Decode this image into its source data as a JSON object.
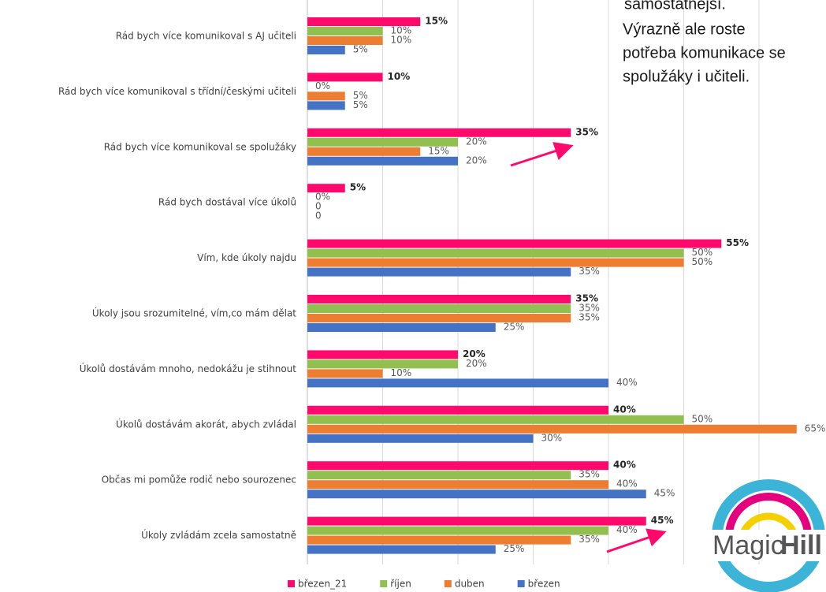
{
  "chart_data": {
    "type": "barh",
    "categories": [
      "Rád bych více komunikoval s AJ učiteli",
      "Rád bych více komunikoval s třídní/českými učiteli",
      "Rád bych více komunikoval se spolužáky",
      "Rád bych dostával více úkolů",
      "Vím, kde úkoly najdu",
      "Úkoly jsou srozumitelné, vím,co mám dělat",
      "Úkolů dostávám mnoho, nedokážu je stihnout",
      "Úkolů dostávám akorát, abych zvládal",
      "Občas mi pomůže rodič nebo sourozenec",
      "Úkoly zvládám zcela samostatně"
    ],
    "series": [
      {
        "name": "březen_21",
        "color": "#ff0a6c",
        "values": [
          15,
          10,
          35,
          5,
          55,
          35,
          20,
          40,
          40,
          45
        ],
        "value_labels": [
          "15%",
          "10%",
          "35%",
          "5%",
          "55%",
          "35%",
          "20%",
          "40%",
          "40%",
          "45%"
        ]
      },
      {
        "name": "říjen",
        "color": "#92c050",
        "values": [
          10,
          0,
          20,
          0,
          50,
          35,
          20,
          50,
          35,
          40
        ],
        "value_labels": [
          "10%",
          "0%",
          "20%",
          "0%",
          "50%",
          "35%",
          "20%",
          "50%",
          "35%",
          "40%"
        ]
      },
      {
        "name": "duben",
        "color": "#ed7d31",
        "values": [
          10,
          5,
          15,
          0,
          50,
          35,
          10,
          65,
          40,
          35
        ],
        "value_labels": [
          "10%",
          "5%",
          "15%",
          "0",
          "50%",
          "35%",
          "10%",
          "65%",
          "40%",
          "35%"
        ]
      },
      {
        "name": "březen",
        "color": "#4472c4",
        "values": [
          5,
          5,
          20,
          0,
          35,
          25,
          40,
          30,
          45,
          25
        ],
        "value_labels": [
          "5%",
          "5%",
          "20%",
          "0",
          "35%",
          "25%",
          "40%",
          "30%",
          "45%",
          "25%"
        ]
      }
    ],
    "xlim": [
      0,
      70
    ],
    "xticks": [
      0,
      10,
      20,
      30,
      40,
      50,
      60
    ],
    "grid": true,
    "legend": "bottom",
    "annotation": [
      "samostatnější.",
      "Výrazně ale roste",
      "potřeba komunikace se",
      "spolužáky i učiteli."
    ],
    "logo": [
      "Magic",
      "Hill"
    ]
  }
}
